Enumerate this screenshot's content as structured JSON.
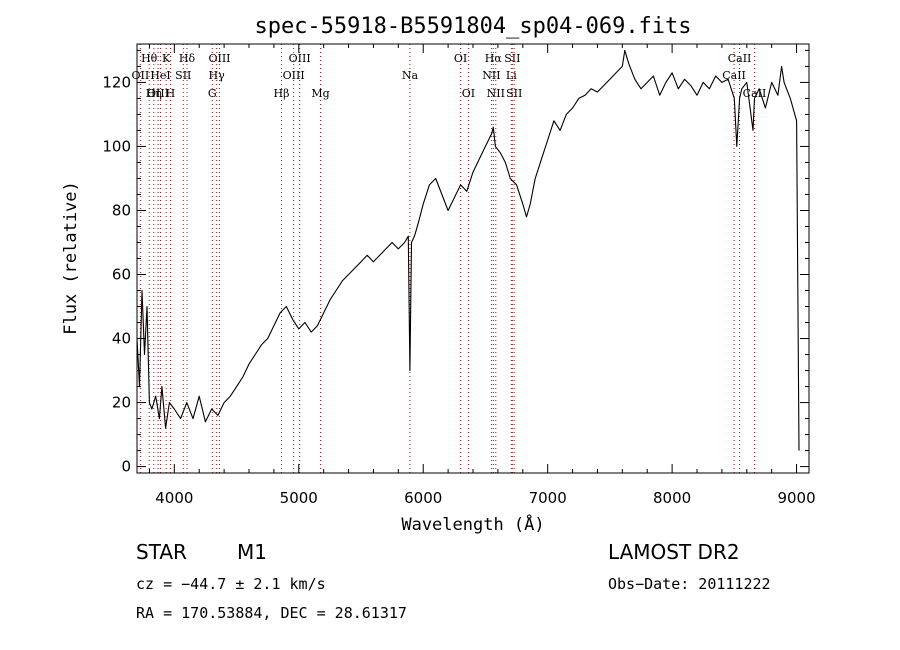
{
  "chart_data": {
    "type": "line",
    "title": "spec-55918-B5591804_sp04-069.fits",
    "xlabel": "Wavelength (Å)",
    "ylabel": "Flux (relative)",
    "xlim": [
      3700,
      9100
    ],
    "ylim": [
      -2,
      132
    ],
    "xticks": [
      4000,
      5000,
      6000,
      7000,
      8000,
      9000
    ],
    "yticks": [
      0,
      20,
      40,
      60,
      80,
      100,
      120
    ],
    "grid": false,
    "line_color": "#000000",
    "marker_color": "#cc0000",
    "series": [
      {
        "x": [
          3700,
          3720,
          3740,
          3760,
          3780,
          3800,
          3820,
          3850,
          3880,
          3900,
          3930,
          3960,
          4000,
          4050,
          4100,
          4150,
          4200,
          4250,
          4300,
          4350,
          4400,
          4450,
          4500,
          4550,
          4600,
          4650,
          4700,
          4750,
          4800,
          4850,
          4900,
          4950,
          5000,
          5050,
          5100,
          5150,
          5200,
          5250,
          5300,
          5350,
          5400,
          5450,
          5500,
          5550,
          5600,
          5650,
          5700,
          5750,
          5800,
          5850,
          5880,
          5893,
          5906,
          5930,
          5960,
          6000,
          6050,
          6100,
          6150,
          6200,
          6250,
          6300,
          6350,
          6400,
          6450,
          6500,
          6550,
          6563,
          6580,
          6620,
          6660,
          6700,
          6750,
          6800,
          6830,
          6860,
          6880,
          6900,
          6950,
          7000,
          7050,
          7100,
          7150,
          7200,
          7250,
          7300,
          7350,
          7400,
          7450,
          7500,
          7550,
          7600,
          7620,
          7650,
          7700,
          7750,
          7800,
          7850,
          7900,
          7950,
          8000,
          8050,
          8100,
          8150,
          8200,
          8250,
          8300,
          8350,
          8400,
          8450,
          8500,
          8520,
          8542,
          8560,
          8600,
          8650,
          8662,
          8700,
          8750,
          8800,
          8850,
          8880,
          8900,
          8950,
          9000,
          9020
        ],
        "y": [
          40,
          25,
          55,
          35,
          50,
          20,
          18,
          22,
          15,
          25,
          12,
          20,
          18,
          15,
          20,
          15,
          22,
          14,
          18,
          16,
          20,
          22,
          25,
          28,
          32,
          35,
          38,
          40,
          44,
          48,
          50,
          46,
          43,
          45,
          42,
          44,
          48,
          52,
          55,
          58,
          60,
          62,
          64,
          66,
          64,
          66,
          68,
          70,
          68,
          70,
          72,
          30,
          70,
          72,
          76,
          82,
          88,
          90,
          85,
          80,
          84,
          88,
          86,
          92,
          96,
          100,
          104,
          106,
          100,
          98,
          95,
          90,
          88,
          82,
          78,
          82,
          86,
          90,
          96,
          102,
          108,
          105,
          110,
          112,
          115,
          116,
          118,
          117,
          119,
          121,
          123,
          125,
          130,
          126,
          121,
          118,
          120,
          122,
          116,
          120,
          123,
          118,
          121,
          119,
          116,
          120,
          118,
          122,
          120,
          121,
          115,
          100,
          115,
          118,
          120,
          105,
          115,
          118,
          112,
          120,
          116,
          125,
          120,
          115,
          108,
          5
        ]
      }
    ],
    "line_markers": [
      {
        "label": "Hθ",
        "wavelength": 3798,
        "row": 1
      },
      {
        "label": "OII",
        "wavelength": 3727,
        "row": 2
      },
      {
        "label": "OIII",
        "wavelength": 3869,
        "row": 3
      },
      {
        "label": "K",
        "wavelength": 3934,
        "row": 1
      },
      {
        "label": "HeI",
        "wavelength": 3889,
        "row": 2
      },
      {
        "label": "Hη",
        "wavelength": 3835,
        "row": 3
      },
      {
        "label": "H",
        "wavelength": 3969,
        "row": 3
      },
      {
        "label": "Hδ",
        "wavelength": 4102,
        "row": 1
      },
      {
        "label": "SII",
        "wavelength": 4072,
        "row": 2
      },
      {
        "label": "OIII",
        "wavelength": 4363,
        "row": 1
      },
      {
        "label": "Hγ",
        "wavelength": 4340,
        "row": 2
      },
      {
        "label": "G",
        "wavelength": 4305,
        "row": 3
      },
      {
        "label": "Hβ",
        "wavelength": 4861,
        "row": 3
      },
      {
        "label": "OIII",
        "wavelength": 5007,
        "row": 1
      },
      {
        "label": "OIII",
        "wavelength": 4959,
        "row": 2
      },
      {
        "label": "Mg",
        "wavelength": 5175,
        "row": 3
      },
      {
        "label": "Na",
        "wavelength": 5893,
        "row": 2
      },
      {
        "label": "OI",
        "wavelength": 6300,
        "row": 1
      },
      {
        "label": "OI",
        "wavelength": 6363,
        "row": 3
      },
      {
        "label": "Hα",
        "wavelength": 6563,
        "row": 1
      },
      {
        "label": "SII",
        "wavelength": 6716,
        "row": 1
      },
      {
        "label": "NII",
        "wavelength": 6548,
        "row": 2
      },
      {
        "label": "Li",
        "wavelength": 6708,
        "row": 2
      },
      {
        "label": "NII",
        "wavelength": 6583,
        "row": 3
      },
      {
        "label": "SII",
        "wavelength": 6731,
        "row": 3
      },
      {
        "label": "CaII",
        "wavelength": 8542,
        "row": 1
      },
      {
        "label": "CaII",
        "wavelength": 8498,
        "row": 2
      },
      {
        "label": "CaII",
        "wavelength": 8662,
        "row": 3
      }
    ]
  },
  "info": {
    "object_class": "STAR",
    "subclass": "M1",
    "survey": "LAMOST DR2",
    "redshift": "cz = −44.7 ± 2.1 km/s",
    "obs_date": "Obs−Date: 20111222",
    "coords": "RA = 170.53884, DEC =  28.61317"
  }
}
